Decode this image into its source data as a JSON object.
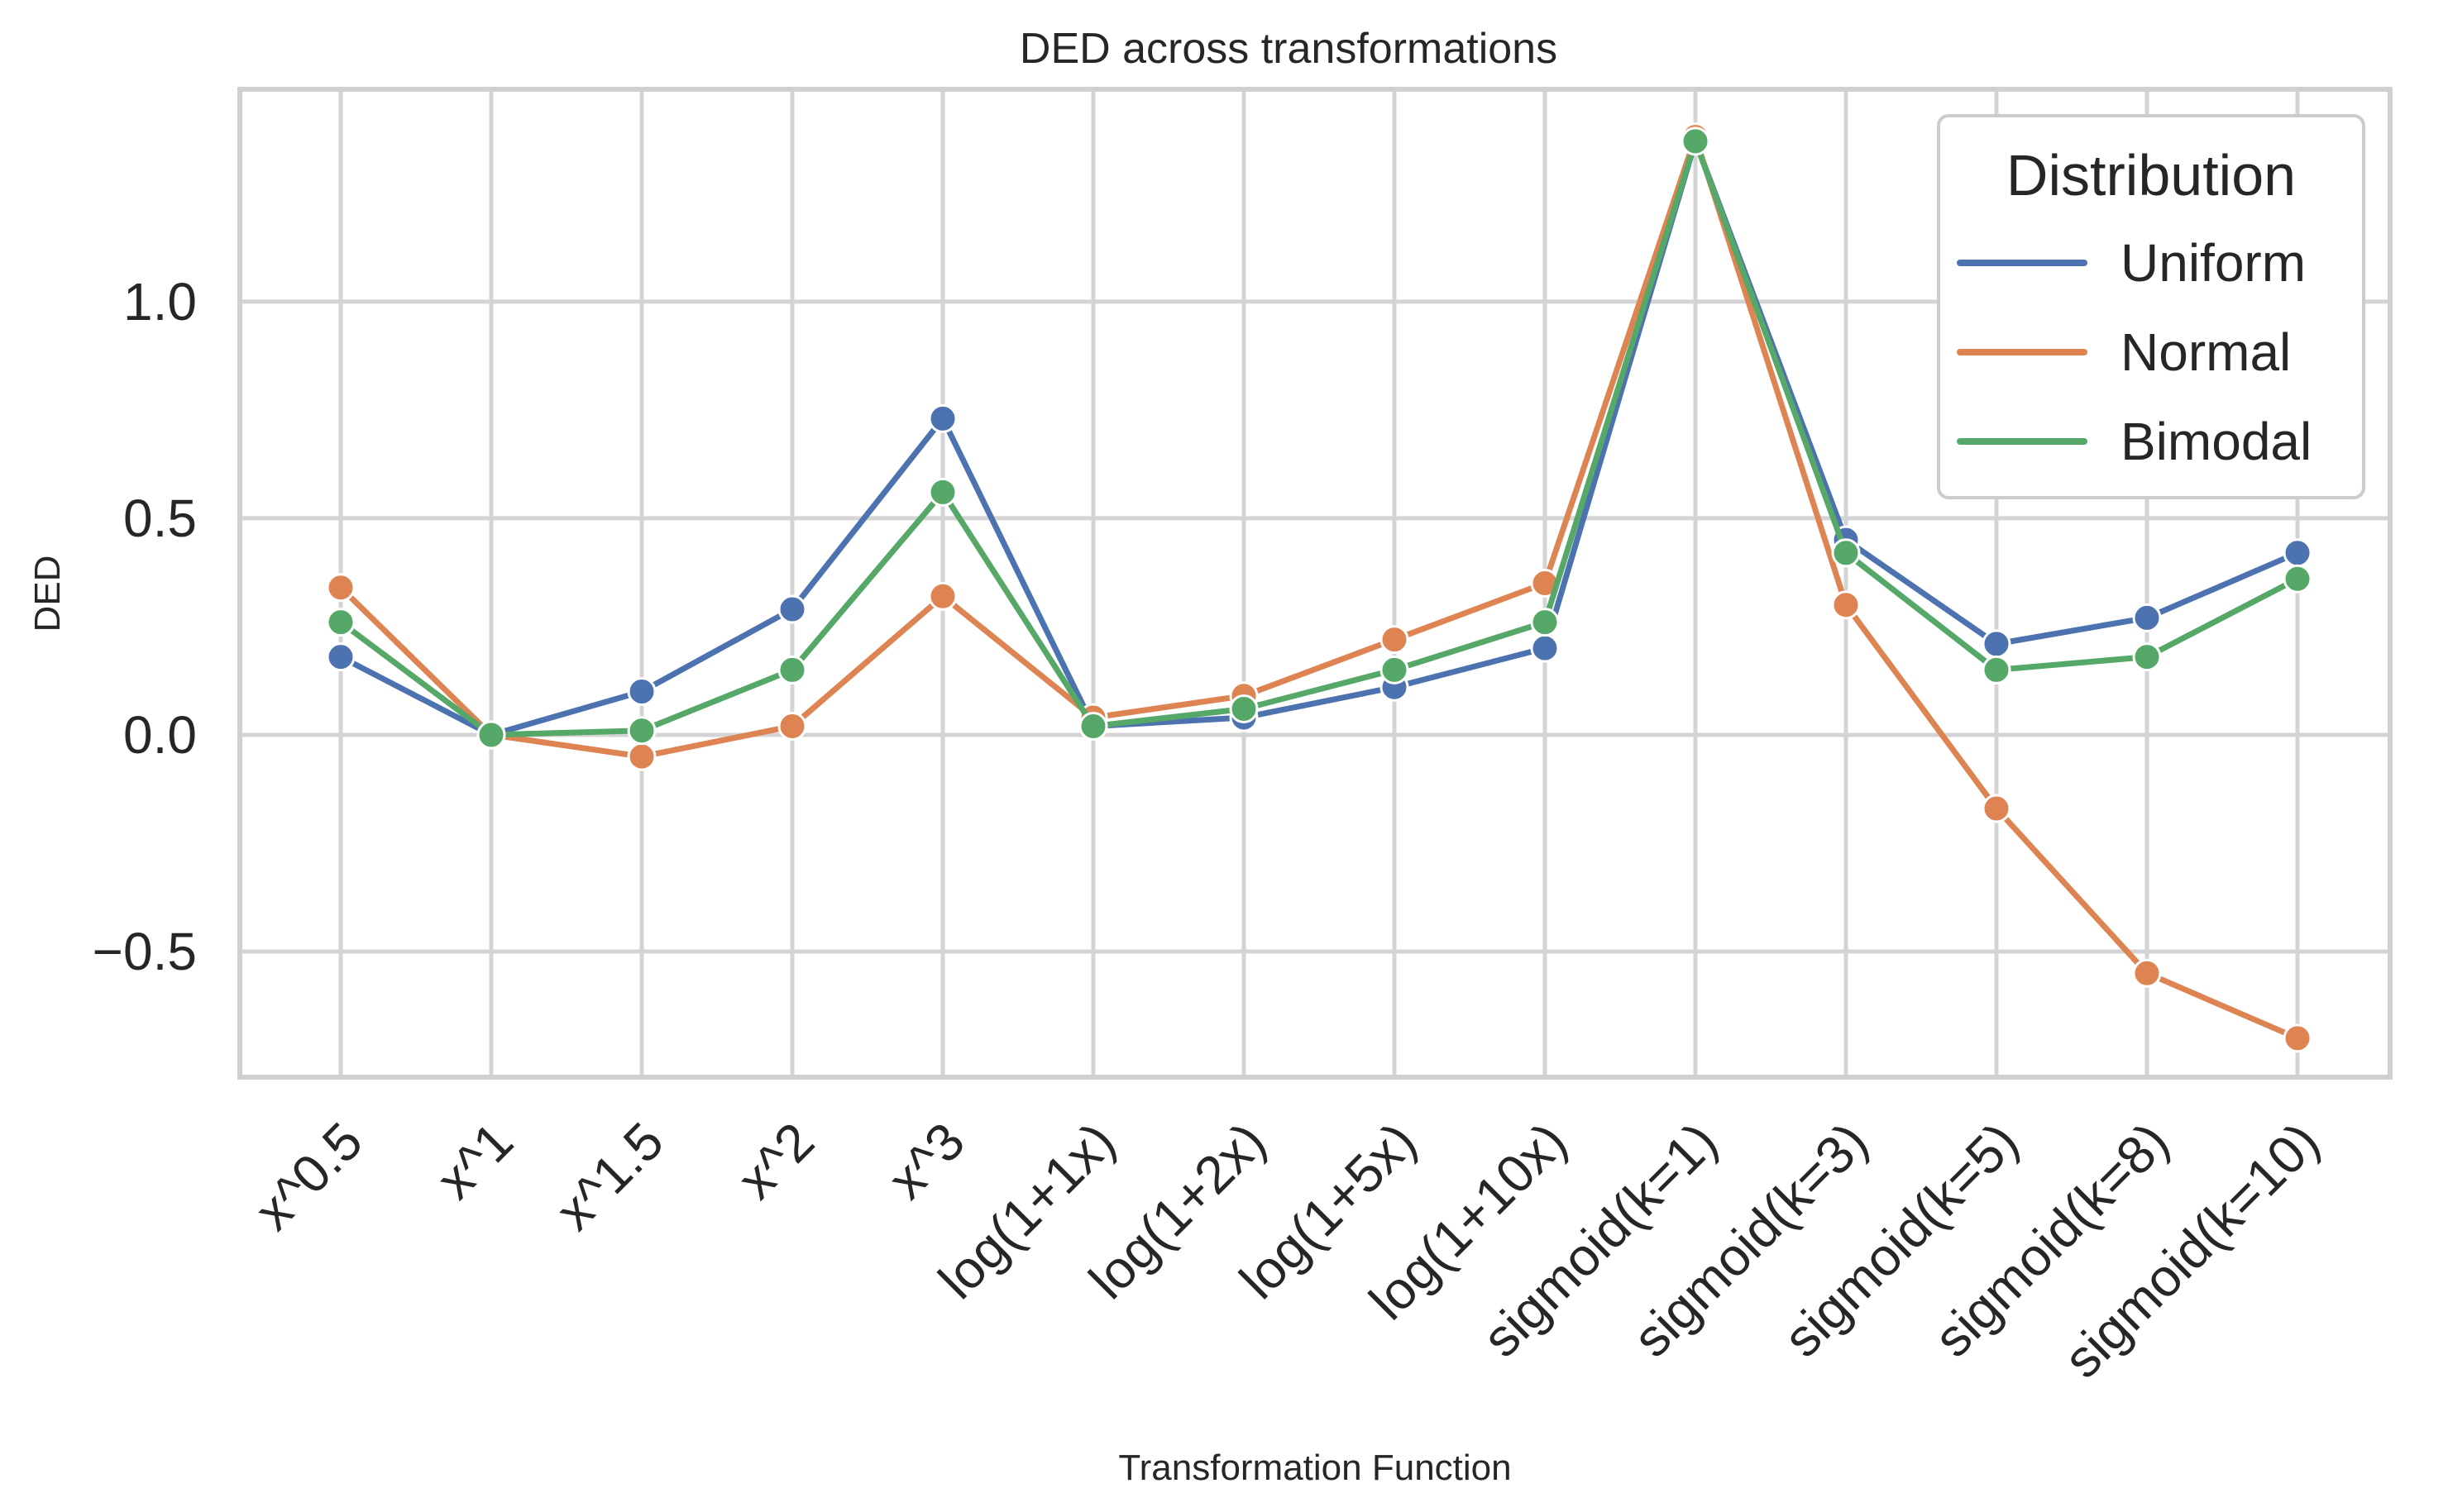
{
  "chart_data": {
    "type": "line",
    "title": "DED across transformations",
    "xlabel": "Transformation Function",
    "ylabel": "DED",
    "categories": [
      "x^0.5",
      "x^1",
      "x^1.5",
      "x^2",
      "x^3",
      "log(1+1x)",
      "log(1+2x)",
      "log(1+5x)",
      "log(1+10x)",
      "sigmoid(k=1)",
      "sigmoid(k=3)",
      "sigmoid(k=5)",
      "sigmoid(k=8)",
      "sigmoid(k=10)"
    ],
    "ylim": [
      -0.79,
      1.49
    ],
    "yticks": [
      -0.5,
      0.0,
      0.5,
      1.0
    ],
    "ytick_labels": [
      "−0.5",
      "0.0",
      "0.5",
      "1.0"
    ],
    "grid": true,
    "legend": {
      "title": "Distribution",
      "placement": "top-right"
    },
    "series": [
      {
        "name": "Uniform",
        "color": "#4c72b0",
        "values": [
          0.18,
          0.0,
          0.1,
          0.29,
          0.73,
          0.02,
          0.04,
          0.11,
          0.2,
          1.37,
          0.45,
          0.21,
          0.27,
          0.42
        ]
      },
      {
        "name": "Normal",
        "color": "#dd8452",
        "values": [
          0.34,
          0.0,
          -0.05,
          0.02,
          0.32,
          0.04,
          0.09,
          0.22,
          0.35,
          1.38,
          0.3,
          -0.17,
          -0.55,
          -0.7
        ]
      },
      {
        "name": "Bimodal",
        "color": "#55a868",
        "values": [
          0.26,
          0.0,
          0.01,
          0.15,
          0.56,
          0.02,
          0.06,
          0.15,
          0.26,
          1.37,
          0.42,
          0.15,
          0.18,
          0.36
        ]
      }
    ]
  }
}
